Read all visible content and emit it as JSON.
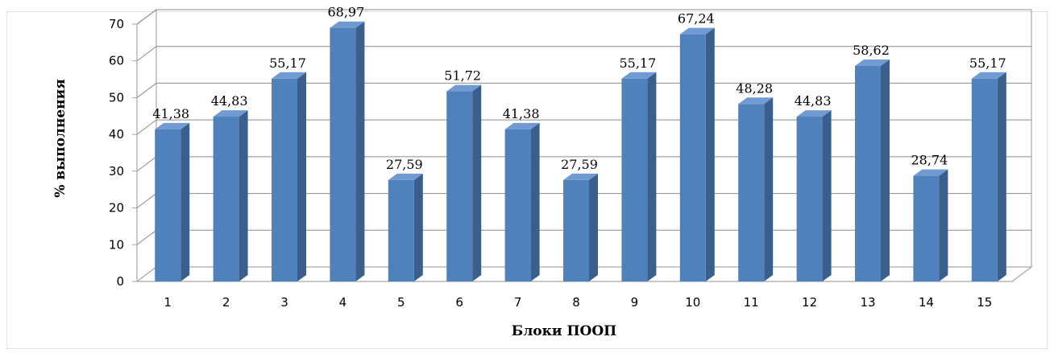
{
  "chart_data": {
    "type": "bar",
    "categories": [
      "1",
      "2",
      "3",
      "4",
      "5",
      "6",
      "7",
      "8",
      "9",
      "10",
      "11",
      "12",
      "13",
      "14",
      "15"
    ],
    "values": [
      41.38,
      44.83,
      55.17,
      68.97,
      27.59,
      51.72,
      41.38,
      27.59,
      55.17,
      67.24,
      48.28,
      44.83,
      58.62,
      28.74,
      55.17
    ],
    "data_labels": [
      "41,38",
      "44,83",
      "55,17",
      "68,97",
      "27,59",
      "51,72",
      "41,38",
      "27,59",
      "55,17",
      "67,24",
      "48,28",
      "44,83",
      "58,62",
      "28,74",
      "55,17"
    ],
    "yticks": [
      "0",
      "10",
      "20",
      "30",
      "40",
      "50",
      "60",
      "70"
    ],
    "ylim": [
      0,
      70
    ],
    "xlabel": "Блоки ПООП",
    "ylabel": "% выполнения",
    "grid": true,
    "legend": "none",
    "bar_color": "#4f81bd",
    "bar_side_color": "#3b5f8c",
    "bar_top_color": "#6f9bd2",
    "grid_color": "#8c8c8c",
    "wall_color": "#a6a6a6"
  }
}
